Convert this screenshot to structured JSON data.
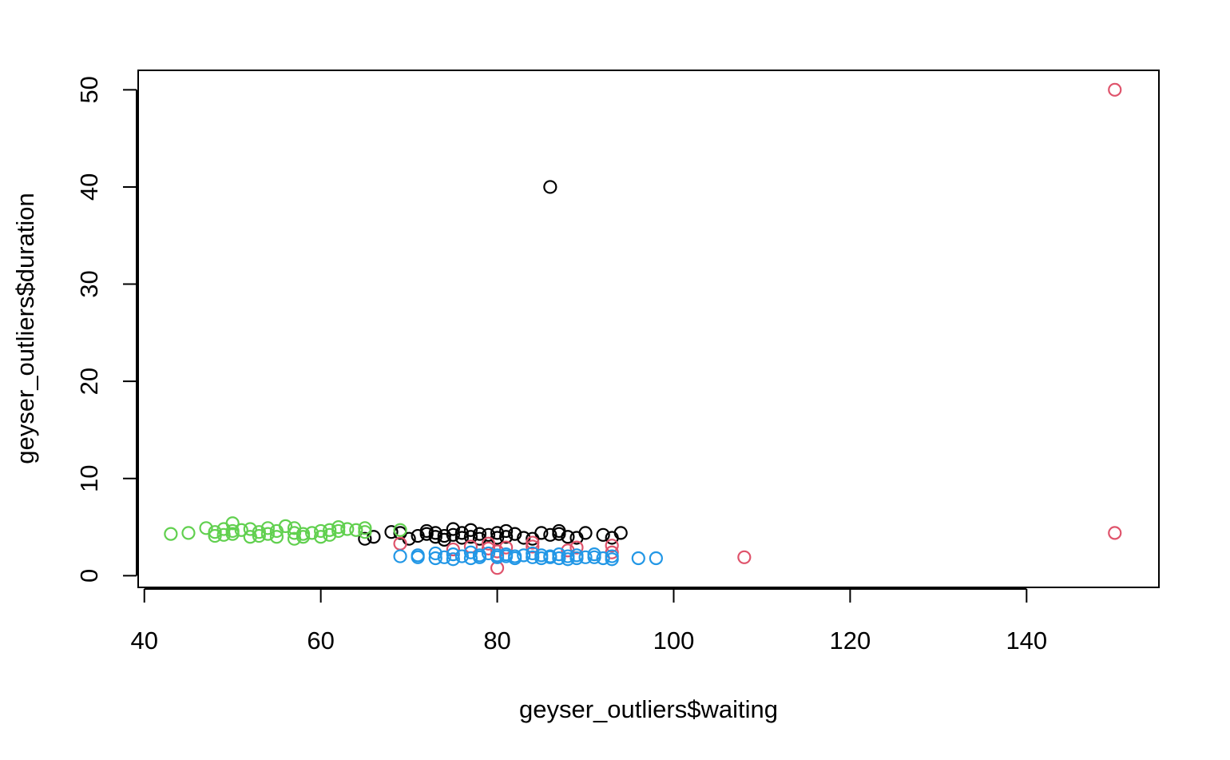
{
  "chart_data": {
    "type": "scatter",
    "title": "",
    "xlabel": "geyser_outliers$waiting",
    "ylabel": "geyser_outliers$duration",
    "xlim": [
      39.3,
      155.0
    ],
    "ylim": [
      -1.2,
      52.0
    ],
    "xticks": [
      40,
      60,
      80,
      100,
      120,
      140
    ],
    "yticks": [
      0,
      10,
      20,
      30,
      40,
      50
    ],
    "grid": false,
    "legend": "none",
    "marker": "open-circle",
    "series": [
      {
        "color": "#000000",
        "points": [
          [
            65,
            3.8
          ],
          [
            66,
            4.0
          ],
          [
            68,
            4.5
          ],
          [
            69,
            4.4
          ],
          [
            70,
            3.8
          ],
          [
            71,
            4.1
          ],
          [
            72,
            4.3
          ],
          [
            72,
            4.6
          ],
          [
            73,
            4.0
          ],
          [
            73,
            4.4
          ],
          [
            74,
            3.7
          ],
          [
            74,
            4.1
          ],
          [
            75,
            4.2
          ],
          [
            75,
            4.8
          ],
          [
            76,
            3.9
          ],
          [
            76,
            4.4
          ],
          [
            77,
            4.0
          ],
          [
            77,
            4.7
          ],
          [
            78,
            3.8
          ],
          [
            78,
            4.3
          ],
          [
            79,
            4.2
          ],
          [
            80,
            3.9
          ],
          [
            80,
            4.4
          ],
          [
            81,
            4.0
          ],
          [
            81,
            4.6
          ],
          [
            82,
            4.3
          ],
          [
            83,
            3.9
          ],
          [
            84,
            3.8
          ],
          [
            85,
            4.4
          ],
          [
            86,
            4.2
          ],
          [
            86,
            40.0
          ],
          [
            87,
            4.3
          ],
          [
            87,
            4.6
          ],
          [
            88,
            4.0
          ],
          [
            89,
            3.9
          ],
          [
            90,
            4.4
          ],
          [
            92,
            4.2
          ],
          [
            93,
            3.9
          ],
          [
            94,
            4.4
          ]
        ]
      },
      {
        "color": "#df536b",
        "points": [
          [
            69,
            3.3
          ],
          [
            75,
            2.7
          ],
          [
            77,
            3.0
          ],
          [
            79,
            2.8
          ],
          [
            79,
            3.3
          ],
          [
            80,
            0.8
          ],
          [
            80,
            2.5
          ],
          [
            81,
            2.9
          ],
          [
            84,
            3.4
          ],
          [
            84,
            3.0
          ],
          [
            88,
            2.6
          ],
          [
            89,
            2.9
          ],
          [
            93,
            3.1
          ],
          [
            93,
            2.4
          ],
          [
            108,
            1.9
          ],
          [
            150,
            50.0
          ],
          [
            150,
            4.4
          ]
        ]
      },
      {
        "color": "#61d04f",
        "points": [
          [
            43,
            4.3
          ],
          [
            45,
            4.4
          ],
          [
            47,
            4.9
          ],
          [
            48,
            4.5
          ],
          [
            48,
            4.1
          ],
          [
            49,
            4.8
          ],
          [
            49,
            4.2
          ],
          [
            50,
            5.4
          ],
          [
            50,
            4.6
          ],
          [
            50,
            4.3
          ],
          [
            51,
            4.7
          ],
          [
            52,
            4.0
          ],
          [
            52,
            4.8
          ],
          [
            53,
            4.5
          ],
          [
            53,
            4.1
          ],
          [
            54,
            4.9
          ],
          [
            54,
            4.3
          ],
          [
            55,
            4.6
          ],
          [
            55,
            4.0
          ],
          [
            56,
            5.1
          ],
          [
            57,
            4.4
          ],
          [
            57,
            3.8
          ],
          [
            57,
            4.9
          ],
          [
            58,
            4.3
          ],
          [
            58,
            4.0
          ],
          [
            59,
            4.4
          ],
          [
            60,
            4.6
          ],
          [
            60,
            4.0
          ],
          [
            61,
            4.7
          ],
          [
            61,
            4.2
          ],
          [
            62,
            5.0
          ],
          [
            62,
            4.6
          ],
          [
            63,
            4.8
          ],
          [
            64,
            4.7
          ],
          [
            65,
            4.9
          ],
          [
            65,
            4.5
          ],
          [
            69,
            4.7
          ]
        ]
      },
      {
        "color": "#2297e6",
        "points": [
          [
            69,
            2.0
          ],
          [
            71,
            2.1
          ],
          [
            71,
            1.9
          ],
          [
            73,
            2.3
          ],
          [
            73,
            1.8
          ],
          [
            74,
            1.9
          ],
          [
            75,
            2.2
          ],
          [
            75,
            1.7
          ],
          [
            76,
            2.0
          ],
          [
            77,
            2.4
          ],
          [
            77,
            1.8
          ],
          [
            78,
            2.1
          ],
          [
            78,
            1.9
          ],
          [
            79,
            2.3
          ],
          [
            80,
            1.9
          ],
          [
            80,
            2.1
          ],
          [
            81,
            2.0
          ],
          [
            81,
            2.2
          ],
          [
            82,
            1.8
          ],
          [
            82,
            2.0
          ],
          [
            83,
            2.1
          ],
          [
            84,
            2.3
          ],
          [
            84,
            1.9
          ],
          [
            85,
            1.8
          ],
          [
            85,
            2.1
          ],
          [
            86,
            1.9
          ],
          [
            86,
            2.0
          ],
          [
            87,
            2.2
          ],
          [
            87,
            1.8
          ],
          [
            88,
            2.0
          ],
          [
            88,
            1.7
          ],
          [
            89,
            2.1
          ],
          [
            89,
            1.8
          ],
          [
            90,
            1.9
          ],
          [
            91,
            2.2
          ],
          [
            91,
            1.9
          ],
          [
            92,
            1.8
          ],
          [
            93,
            2.0
          ],
          [
            93,
            1.7
          ],
          [
            96,
            1.8
          ],
          [
            98,
            1.8
          ]
        ]
      }
    ]
  }
}
